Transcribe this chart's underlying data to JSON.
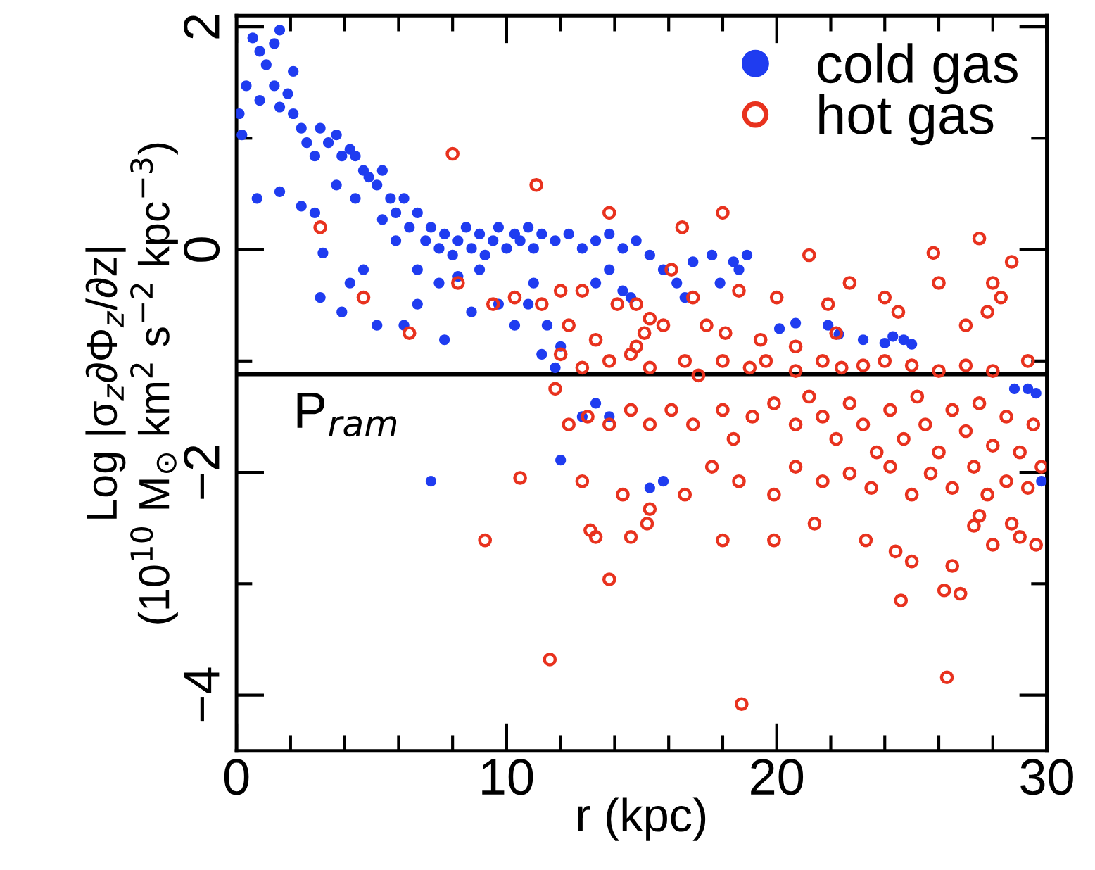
{
  "chart_data": {
    "type": "scatter",
    "xlabel": "r (kpc)",
    "ylabel": "Log |σ$_{z}$∂Φ$_{z}$/∂z|\n(10$^{10}$ M$_{⊙}$ km$^{2}$ s$^{−2}$ kpc$^{−3}$)",
    "xlim": [
      0,
      30
    ],
    "ylim": [
      -4.5,
      2.1
    ],
    "xticks": [
      0,
      {
        "value": 2,
        "label": null
      },
      {
        "value": 4,
        "label": null
      },
      {
        "value": 6,
        "label": null
      },
      {
        "value": 8,
        "label": null
      },
      10,
      {
        "value": 12,
        "label": null
      },
      {
        "value": 14,
        "label": null
      },
      {
        "value": 16,
        "label": null
      },
      {
        "value": 18,
        "label": null
      },
      20,
      {
        "value": 22,
        "label": null
      },
      {
        "value": 24,
        "label": null
      },
      {
        "value": 26,
        "label": null
      },
      {
        "value": 28,
        "label": null
      },
      30
    ],
    "yticks": [
      -4,
      {
        "value": -3,
        "label": null
      },
      -2,
      {
        "value": -1,
        "label": null
      },
      0,
      {
        "value": 1,
        "label": null
      },
      2
    ],
    "grid": false,
    "legend": "top right",
    "marker": "circle",
    "ref_lines": [
      {
        "axis": "y",
        "value": -1.12,
        "label": "P$_{ram}$",
        "color": "#000000"
      }
    ],
    "series": [
      {
        "name": "cold gas",
        "color": "#1f3cf0",
        "x": [
          0.1,
          0.36,
          0.6,
          0.86,
          1.1,
          1.4,
          1.6,
          0.2,
          0.86,
          1.4,
          1.6,
          1.9,
          2.1,
          0.76,
          1.6,
          2.1,
          2.4,
          2.6,
          2.9,
          3.1,
          3.4,
          3.7,
          3.9,
          4.2,
          4.4,
          4.7,
          4.9,
          5.2,
          5.4,
          5.7,
          5.9,
          6.2,
          6.4,
          6.7,
          7.0,
          7.2,
          7.5,
          7.7,
          8.0,
          8.2,
          8.5,
          8.7,
          9.0,
          9.2,
          9.5,
          9.7,
          10.0,
          10.3,
          10.5,
          10.8,
          11.0,
          11.3,
          11.8,
          12.3,
          12.8,
          13.3,
          13.8,
          14.3,
          14.8,
          15.3,
          15.8,
          16.3,
          16.9,
          17.6,
          18.4,
          18.9,
          16.6,
          17.9,
          18.6,
          3.1,
          4.2,
          4.7,
          3.9,
          5.2,
          6.2,
          6.7,
          7.7,
          8.7,
          9.7,
          10.3,
          10.8,
          11.0,
          11.3,
          11.5,
          11.8,
          12.0,
          12.8,
          13.3,
          13.8,
          12.0,
          7.2,
          15.3,
          15.8,
          20.1,
          20.7,
          21.9,
          22.3,
          23.2,
          24.0,
          24.7,
          25.0,
          24.3,
          28.8,
          29.3,
          29.6,
          29.8,
          3.2,
          2.4,
          2.9,
          3.7,
          4.4,
          5.4,
          5.9,
          6.7,
          7.5,
          8.2,
          9.0,
          13.3,
          13.8,
          14.3,
          14.6
        ],
        "values": [
          1.22,
          1.47,
          1.9,
          1.78,
          1.66,
          1.85,
          1.97,
          1.03,
          1.34,
          1.47,
          1.28,
          1.4,
          1.22,
          0.46,
          0.52,
          1.6,
          1.09,
          0.96,
          0.84,
          1.09,
          0.96,
          1.03,
          0.84,
          0.9,
          0.84,
          0.71,
          0.65,
          0.58,
          0.71,
          0.46,
          0.33,
          0.46,
          0.2,
          0.33,
          0.08,
          0.2,
          0.01,
          0.14,
          -0.05,
          0.08,
          0.2,
          0.01,
          0.14,
          -0.05,
          0.08,
          0.2,
          0.01,
          0.14,
          0.08,
          0.2,
          0.01,
          0.14,
          0.08,
          0.14,
          0.01,
          0.08,
          0.14,
          0.01,
          0.08,
          -0.05,
          -0.18,
          -0.3,
          -0.11,
          -0.05,
          -0.11,
          -0.05,
          -0.43,
          -0.3,
          -0.18,
          -0.43,
          -0.3,
          -0.18,
          -0.56,
          -0.68,
          -0.68,
          -0.49,
          -0.81,
          -0.56,
          -0.49,
          -0.68,
          -0.49,
          -0.3,
          -0.94,
          -0.68,
          -1.06,
          -0.87,
          -1.5,
          -1.38,
          -1.5,
          -1.89,
          -2.08,
          -2.14,
          -2.08,
          -0.71,
          -0.66,
          -0.68,
          -0.76,
          -0.81,
          -0.84,
          -0.81,
          -0.85,
          -0.78,
          -1.25,
          -1.25,
          -1.29,
          -2.08,
          -0.03,
          0.39,
          0.33,
          0.58,
          0.46,
          0.27,
          0.08,
          -0.18,
          -0.3,
          -0.24,
          -0.18,
          -0.3,
          -0.18,
          -0.37,
          -0.43
        ]
      },
      {
        "name": "hot gas",
        "color": "#e8321e",
        "x": [
          8.0,
          11.1,
          13.8,
          16.5,
          18.0,
          21.2,
          25.8,
          27.5,
          28.7,
          4.7,
          3.1,
          6.4,
          8.2,
          9.5,
          10.3,
          11.3,
          12.0,
          12.3,
          12.8,
          14.1,
          14.8,
          15.1,
          15.3,
          16.1,
          16.9,
          17.4,
          18.6,
          20.0,
          21.9,
          22.7,
          24.0,
          24.5,
          26.0,
          28.0,
          28.3,
          27.8,
          27.0,
          22.2,
          20.7,
          19.4,
          18.1,
          15.8,
          14.8,
          13.3,
          12.0,
          12.8,
          13.8,
          14.6,
          15.3,
          16.6,
          17.1,
          18.0,
          19.0,
          19.6,
          20.7,
          21.7,
          22.4,
          23.2,
          24.0,
          25.0,
          26.0,
          27.0,
          28.0,
          29.3,
          11.8,
          12.3,
          13.0,
          13.8,
          14.6,
          15.3,
          16.1,
          16.9,
          18.0,
          18.4,
          19.1,
          19.9,
          20.7,
          21.2,
          21.7,
          22.2,
          22.7,
          23.2,
          23.7,
          24.2,
          24.7,
          25.2,
          25.5,
          26.0,
          26.5,
          27.0,
          27.5,
          28.0,
          28.5,
          29.0,
          29.5,
          29.8,
          29.3,
          28.5,
          27.8,
          27.3,
          26.5,
          25.7,
          25.0,
          24.2,
          23.5,
          22.7,
          21.7,
          20.7,
          19.9,
          18.6,
          17.6,
          16.6,
          15.3,
          14.3,
          13.1,
          12.8,
          13.8,
          13.3,
          14.6,
          15.2,
          9.2,
          10.5,
          11.6,
          18.7,
          24.6,
          26.3,
          24.4,
          26.2,
          26.5,
          26.8,
          25.0,
          28.0,
          28.7,
          29.6,
          29.0,
          27.3,
          23.3,
          21.4,
          19.9,
          18.0,
          27.5
        ],
        "values": [
          0.86,
          0.58,
          0.33,
          0.2,
          0.33,
          -0.05,
          -0.03,
          0.1,
          -0.11,
          -0.43,
          0.2,
          -0.75,
          -0.3,
          -0.49,
          -0.43,
          -0.49,
          -0.37,
          -0.68,
          -0.37,
          -0.49,
          -0.49,
          -0.75,
          -0.62,
          -0.18,
          -0.43,
          -0.68,
          -0.37,
          -0.43,
          -0.49,
          -0.3,
          -0.43,
          -0.56,
          -0.3,
          -0.3,
          -0.43,
          -0.56,
          -0.68,
          -0.75,
          -0.87,
          -0.81,
          -0.75,
          -0.68,
          -0.87,
          -0.81,
          -0.94,
          -1.06,
          -1.0,
          -0.94,
          -1.06,
          -1.0,
          -1.13,
          -1.0,
          -1.06,
          -1.0,
          -1.09,
          -1.0,
          -1.06,
          -1.04,
          -1.0,
          -1.04,
          -1.09,
          -1.04,
          -1.09,
          -1.0,
          -1.25,
          -1.57,
          -1.5,
          -1.57,
          -1.44,
          -1.57,
          -1.44,
          -1.57,
          -1.44,
          -1.7,
          -1.5,
          -1.38,
          -1.57,
          -1.32,
          -1.5,
          -1.7,
          -1.38,
          -1.57,
          -1.82,
          -1.44,
          -1.7,
          -1.32,
          -1.57,
          -1.82,
          -1.44,
          -1.63,
          -1.38,
          -1.76,
          -1.5,
          -1.82,
          -1.57,
          -1.95,
          -2.14,
          -2.08,
          -2.2,
          -1.95,
          -2.14,
          -2.01,
          -2.2,
          -1.95,
          -2.14,
          -2.01,
          -2.08,
          -1.95,
          -2.2,
          -2.08,
          -1.95,
          -2.2,
          -2.33,
          -2.2,
          -2.52,
          -2.08,
          -2.96,
          -2.58,
          -2.58,
          -2.46,
          -2.61,
          -2.05,
          -3.68,
          -4.08,
          -3.15,
          -3.84,
          -2.71,
          -3.06,
          -2.84,
          -3.09,
          -2.8,
          -2.65,
          -2.46,
          -2.65,
          -2.58,
          -2.48,
          -2.61,
          -2.46,
          -2.61,
          -2.61,
          -2.39
        ]
      }
    ]
  }
}
